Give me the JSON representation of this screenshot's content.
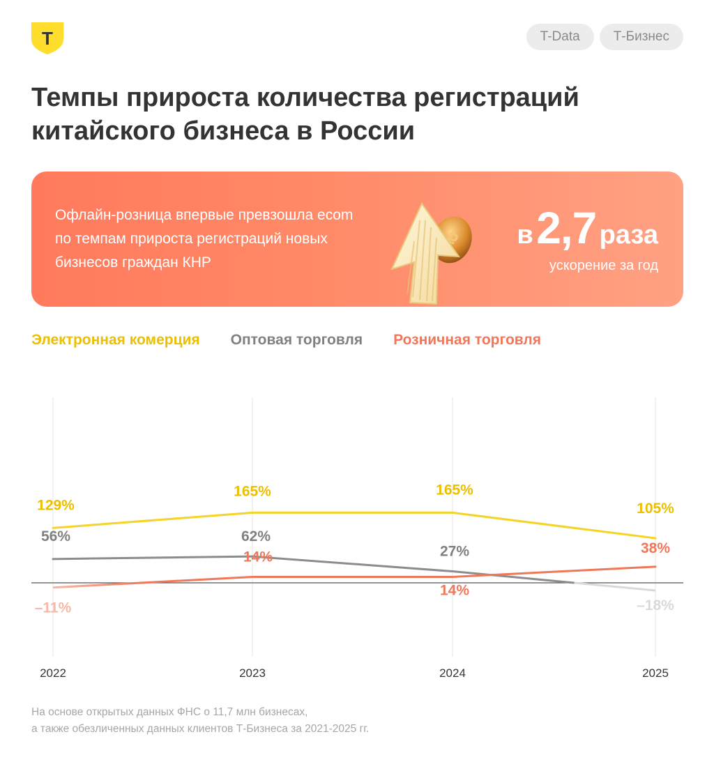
{
  "brand": {
    "logo_letter": "Т",
    "logo_color": "#ffdd2d"
  },
  "tags": [
    "T-Data",
    "Т-Бизнес"
  ],
  "title": "Темпы прироста количества регистраций китайского бизнеса в России",
  "banner": {
    "text": "Офлайн-розница впервые превзошла ecom по темпам прироста регистраций новых бизнесов граждан КНР",
    "prefix": "в",
    "value": "2,7",
    "suffix": "раза",
    "subtitle": "ускорение за год"
  },
  "chart_data": {
    "type": "line",
    "categories": [
      "2022",
      "2023",
      "2024",
      "2025"
    ],
    "series": [
      {
        "name": "Электронная комерция",
        "color": "#f5d327",
        "label_color": "#ecc000",
        "values": [
          129,
          165,
          165,
          105
        ],
        "labels": [
          "129%",
          "165%",
          "165%",
          "105%"
        ]
      },
      {
        "name": "Оптовая торговля",
        "color": "#8c8c8c",
        "label_color": "#808080",
        "values": [
          56,
          62,
          27,
          -18
        ],
        "labels": [
          "56%",
          "62%",
          "27%",
          "–18%"
        ]
      },
      {
        "name": "Розничная торговля",
        "color": "#f0775a",
        "label_color": "#f0775a",
        "values": [
          -11,
          14,
          14,
          38
        ],
        "labels": [
          "–11%",
          "14%",
          "14%",
          "38%"
        ]
      }
    ],
    "zero_line": true,
    "ylim": [
      -30,
      170
    ]
  },
  "footnote": [
    "На основе открытых данных ФНС о 11,7 млн бизнесах,",
    "а также обезличенных данных клиентов Т-Бизнеса за 2021-2025 гг."
  ]
}
